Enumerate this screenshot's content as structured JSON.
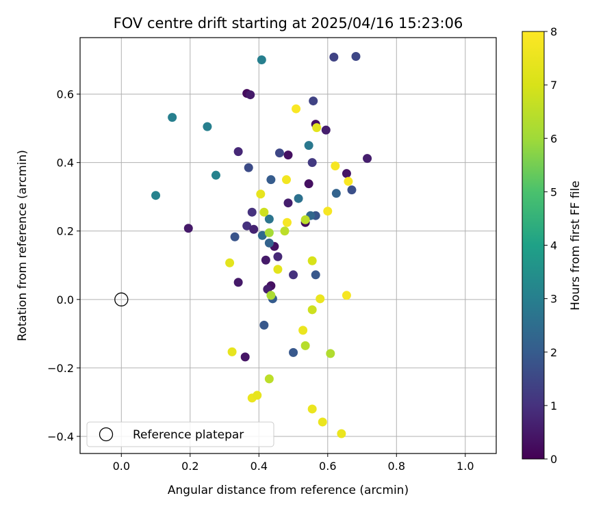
{
  "chart_data": {
    "type": "scatter",
    "title": "FOV centre drift starting at 2025/04/16 15:23:06",
    "xlabel": "Angular distance from reference (arcmin)",
    "ylabel": "Rotation from reference (arcmin)",
    "xlim": [
      -0.12,
      1.09
    ],
    "ylim": [
      -0.45,
      0.765
    ],
    "xticks": [
      0.0,
      0.2,
      0.4,
      0.6,
      0.8,
      1.0
    ],
    "xtick_labels": [
      "0.0",
      "0.2",
      "0.4",
      "0.6",
      "0.8",
      "1.0"
    ],
    "yticks": [
      -0.4,
      -0.2,
      0.0,
      0.2,
      0.4,
      0.6
    ],
    "ytick_labels": [
      "−0.4",
      "−0.2",
      "0.0",
      "0.2",
      "0.4",
      "0.6"
    ],
    "grid": true,
    "legend": {
      "position": "lower-left",
      "label": "Reference platepar"
    },
    "reference_point": {
      "x": 0.0,
      "y": 0.0
    },
    "colorbar": {
      "label": "Hours from first FF file",
      "min": 0,
      "max": 8,
      "ticks": [
        0,
        1,
        2,
        3,
        4,
        5,
        6,
        7,
        8
      ],
      "tick_labels": [
        "0",
        "1",
        "2",
        "3",
        "4",
        "5",
        "6",
        "7",
        "8"
      ],
      "colormap": "viridis"
    },
    "points": [
      {
        "x": 0.365,
        "y": 0.602,
        "c": 0.2
      },
      {
        "x": 0.375,
        "y": 0.598,
        "c": 0.5
      },
      {
        "x": 0.565,
        "y": 0.512,
        "c": 0.3
      },
      {
        "x": 0.595,
        "y": 0.495,
        "c": 0.6
      },
      {
        "x": 0.715,
        "y": 0.412,
        "c": 0.6
      },
      {
        "x": 0.485,
        "y": 0.422,
        "c": 0.3
      },
      {
        "x": 0.655,
        "y": 0.368,
        "c": 0.4
      },
      {
        "x": 0.545,
        "y": 0.338,
        "c": 0.3
      },
      {
        "x": 0.485,
        "y": 0.282,
        "c": 0.6
      },
      {
        "x": 0.535,
        "y": 0.225,
        "c": 0.2
      },
      {
        "x": 0.195,
        "y": 0.208,
        "c": 0.5
      },
      {
        "x": 0.365,
        "y": 0.215,
        "c": 1.0
      },
      {
        "x": 0.385,
        "y": 0.205,
        "c": 0.7
      },
      {
        "x": 0.445,
        "y": 0.155,
        "c": 0.3
      },
      {
        "x": 0.455,
        "y": 0.125,
        "c": 0.8
      },
      {
        "x": 0.42,
        "y": 0.115,
        "c": 0.5
      },
      {
        "x": 0.34,
        "y": 0.05,
        "c": 0.5
      },
      {
        "x": 0.435,
        "y": 0.04,
        "c": 0.3
      },
      {
        "x": 0.425,
        "y": 0.03,
        "c": 0.6
      },
      {
        "x": 0.36,
        "y": -0.168,
        "c": 0.4
      },
      {
        "x": 0.34,
        "y": 0.432,
        "c": 0.8
      },
      {
        "x": 0.38,
        "y": 0.255,
        "c": 1.0
      },
      {
        "x": 0.5,
        "y": 0.072,
        "c": 1.0
      },
      {
        "x": 0.555,
        "y": 0.4,
        "c": 1.2
      },
      {
        "x": 0.618,
        "y": 0.708,
        "c": 1.4
      },
      {
        "x": 0.682,
        "y": 0.71,
        "c": 1.5
      },
      {
        "x": 0.558,
        "y": 0.58,
        "c": 1.4
      },
      {
        "x": 0.46,
        "y": 0.428,
        "c": 1.5
      },
      {
        "x": 0.37,
        "y": 0.385,
        "c": 1.6
      },
      {
        "x": 0.67,
        "y": 0.32,
        "c": 1.7
      },
      {
        "x": 0.565,
        "y": 0.245,
        "c": 1.8
      },
      {
        "x": 0.33,
        "y": 0.183,
        "c": 1.8
      },
      {
        "x": 0.565,
        "y": 0.072,
        "c": 1.9
      },
      {
        "x": 0.415,
        "y": -0.075,
        "c": 1.9
      },
      {
        "x": 0.5,
        "y": -0.155,
        "c": 1.9
      },
      {
        "x": 0.435,
        "y": 0.35,
        "c": 2.0
      },
      {
        "x": 0.625,
        "y": 0.31,
        "c": 2.2
      },
      {
        "x": 0.55,
        "y": 0.245,
        "c": 2.3
      },
      {
        "x": 0.43,
        "y": 0.165,
        "c": 2.2
      },
      {
        "x": 0.44,
        "y": 0.002,
        "c": 2.0
      },
      {
        "x": 0.41,
        "y": 0.187,
        "c": 2.4
      },
      {
        "x": 0.43,
        "y": 0.235,
        "c": 2.7
      },
      {
        "x": 0.515,
        "y": 0.295,
        "c": 2.6
      },
      {
        "x": 0.545,
        "y": 0.45,
        "c": 2.8
      },
      {
        "x": 0.408,
        "y": 0.7,
        "c": 3.0
      },
      {
        "x": 0.148,
        "y": 0.532,
        "c": 3.0
      },
      {
        "x": 0.25,
        "y": 0.505,
        "c": 3.0
      },
      {
        "x": 0.275,
        "y": 0.363,
        "c": 3.1
      },
      {
        "x": 0.1,
        "y": 0.304,
        "c": 3.1
      },
      {
        "x": 0.435,
        "y": 0.012,
        "c": 6.2
      },
      {
        "x": 0.43,
        "y": 0.195,
        "c": 6.1
      },
      {
        "x": 0.475,
        "y": 0.2,
        "c": 6.5
      },
      {
        "x": 0.415,
        "y": 0.255,
        "c": 6.8
      },
      {
        "x": 0.535,
        "y": 0.233,
        "c": 6.5
      },
      {
        "x": 0.555,
        "y": -0.03,
        "c": 6.8
      },
      {
        "x": 0.535,
        "y": -0.135,
        "c": 6.4
      },
      {
        "x": 0.608,
        "y": -0.158,
        "c": 6.3
      },
      {
        "x": 0.43,
        "y": -0.232,
        "c": 6.5
      },
      {
        "x": 0.555,
        "y": 0.113,
        "c": 7.0
      },
      {
        "x": 0.455,
        "y": 0.088,
        "c": 7.3
      },
      {
        "x": 0.315,
        "y": 0.107,
        "c": 7.3
      },
      {
        "x": 0.405,
        "y": 0.308,
        "c": 7.4
      },
      {
        "x": 0.568,
        "y": 0.502,
        "c": 7.3
      },
      {
        "x": 0.578,
        "y": 0.002,
        "c": 7.5
      },
      {
        "x": 0.528,
        "y": -0.09,
        "c": 7.5
      },
      {
        "x": 0.322,
        "y": -0.153,
        "c": 7.4
      },
      {
        "x": 0.38,
        "y": -0.288,
        "c": 7.5
      },
      {
        "x": 0.395,
        "y": -0.28,
        "c": 7.4
      },
      {
        "x": 0.555,
        "y": -0.32,
        "c": 7.5
      },
      {
        "x": 0.585,
        "y": -0.358,
        "c": 7.5
      },
      {
        "x": 0.64,
        "y": -0.392,
        "c": 7.5
      },
      {
        "x": 0.48,
        "y": 0.35,
        "c": 7.7
      },
      {
        "x": 0.482,
        "y": 0.225,
        "c": 7.8
      },
      {
        "x": 0.508,
        "y": 0.557,
        "c": 7.9
      },
      {
        "x": 0.622,
        "y": 0.39,
        "c": 7.8
      },
      {
        "x": 0.66,
        "y": 0.345,
        "c": 7.9
      },
      {
        "x": 0.6,
        "y": 0.258,
        "c": 7.8
      },
      {
        "x": 0.655,
        "y": 0.012,
        "c": 7.8
      }
    ]
  }
}
